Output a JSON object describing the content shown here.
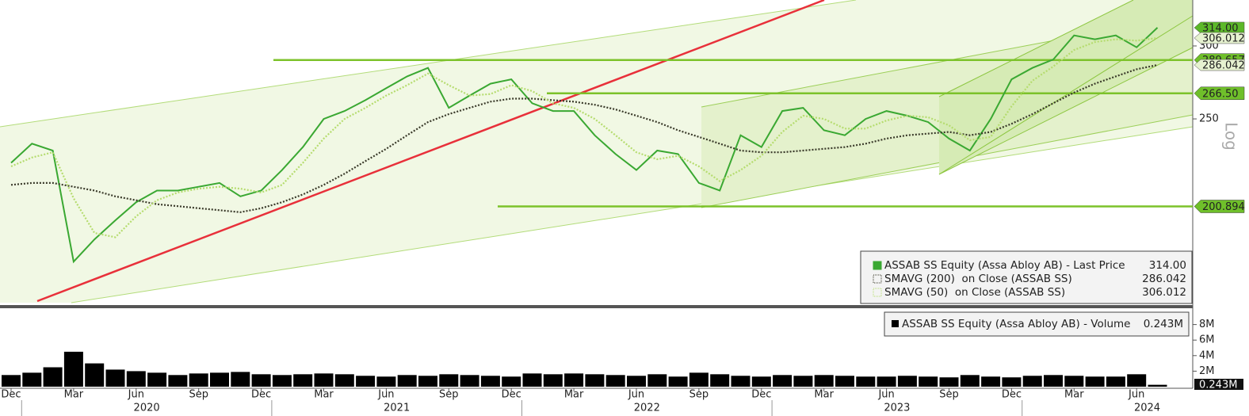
{
  "chart_data": {
    "type": "line",
    "yscale": "log",
    "scale_label": "Log",
    "x": [
      "2019-12",
      "2020-01",
      "2020-02",
      "2020-03",
      "2020-04",
      "2020-05",
      "2020-06",
      "2020-07",
      "2020-08",
      "2020-09",
      "2020-10",
      "2020-11",
      "2020-12",
      "2021-01",
      "2021-02",
      "2021-03",
      "2021-04",
      "2021-05",
      "2021-06",
      "2021-07",
      "2021-08",
      "2021-09",
      "2021-10",
      "2021-11",
      "2021-12",
      "2022-01",
      "2022-02",
      "2022-03",
      "2022-04",
      "2022-05",
      "2022-06",
      "2022-07",
      "2022-08",
      "2022-09",
      "2022-10",
      "2022-11",
      "2022-12",
      "2023-01",
      "2023-02",
      "2023-03",
      "2023-04",
      "2023-05",
      "2023-06",
      "2023-07",
      "2023-08",
      "2023-09",
      "2023-10",
      "2023-11",
      "2023-12",
      "2024-01",
      "2024-02",
      "2024-03",
      "2024-04",
      "2024-05",
      "2024-06",
      "2024-07"
    ],
    "series": [
      {
        "name": "ASSAB SS Equity (Assa Abloy AB) - Last Price",
        "color": "#3aa832",
        "last_value_label": "314.00",
        "values": [
          224,
          235,
          231,
          175,
          185,
          194,
          203,
          209,
          209,
          211,
          213,
          206,
          209,
          220,
          233,
          250,
          255,
          262,
          270,
          278,
          284,
          257,
          265,
          273,
          276,
          260,
          255,
          255,
          240,
          229,
          220,
          231,
          229,
          213,
          209,
          240,
          233,
          255,
          257,
          243,
          240,
          250,
          255,
          252,
          248,
          238,
          231,
          250,
          276,
          284,
          290,
          308,
          305,
          308,
          299,
          314
        ]
      },
      {
        "name": "SMAVG (200)  on Close (ASSAB SS)",
        "color": "#3a3a2a",
        "values": [
          212,
          213,
          213,
          211,
          209,
          206,
          204,
          202,
          201,
          200,
          199,
          198,
          200,
          203,
          207,
          212,
          218,
          225,
          232,
          240,
          248,
          253,
          257,
          261,
          263,
          263,
          262,
          261,
          259,
          256,
          252,
          248,
          243,
          239,
          235,
          231,
          230,
          230,
          231,
          232,
          233,
          235,
          238,
          240,
          241,
          242,
          240,
          242,
          247,
          253,
          260,
          267,
          273,
          278,
          283,
          286.042
        ]
      },
      {
        "name": "SMAVG (50)  on Close (ASSAB SS)",
        "color": "#b5dc6e",
        "values": [
          222,
          227,
          230,
          205,
          188,
          186,
          196,
          204,
          208,
          210,
          211,
          210,
          208,
          212,
          224,
          238,
          250,
          257,
          265,
          272,
          280,
          272,
          265,
          266,
          272,
          268,
          260,
          257,
          250,
          240,
          230,
          226,
          228,
          222,
          214,
          220,
          228,
          242,
          252,
          250,
          244,
          244,
          249,
          252,
          251,
          246,
          237,
          239,
          258,
          275,
          285,
          297,
          303,
          305,
          304,
          306.012
        ]
      }
    ],
    "ylim": [
      157,
      336.5
    ],
    "yticks": [
      250,
      300
    ],
    "hlines": [
      289.657,
      {
        "value": 266.5,
        "label": "266.50"
      },
      200.894
    ],
    "xticks": [
      {
        "value": "2019-12",
        "label": "Dec"
      },
      {
        "value": "2020-03",
        "label": "Mar"
      },
      {
        "value": "2020-06",
        "label": "Jun"
      },
      {
        "value": "2020-09",
        "label": "Sep"
      },
      {
        "value": "2020-12",
        "label": "Dec"
      },
      {
        "value": "2021-03",
        "label": "Mar"
      },
      {
        "value": "2021-06",
        "label": "Jun"
      },
      {
        "value": "2021-09",
        "label": "Sep"
      },
      {
        "value": "2021-12",
        "label": "Dec"
      },
      {
        "value": "2022-03",
        "label": "Mar"
      },
      {
        "value": "2022-06",
        "label": "Jun"
      },
      {
        "value": "2022-09",
        "label": "Sep"
      },
      {
        "value": "2022-12",
        "label": "Dec"
      },
      {
        "value": "2023-03",
        "label": "Mar"
      },
      {
        "value": "2023-06",
        "label": "Jun"
      },
      {
        "value": "2023-09",
        "label": "Sep"
      },
      {
        "value": "2023-12",
        "label": "Dec"
      },
      {
        "value": "2024-03",
        "label": "Mar"
      },
      {
        "value": "2024-06",
        "label": "Jun"
      }
    ],
    "years": [
      "2020",
      "2021",
      "2022",
      "2023",
      "2024"
    ],
    "volume": {
      "type": "bar",
      "name": "ASSAB SS Equity (Assa Abloy AB) - Volume",
      "color": "#000000",
      "last_value_label": "0.243M",
      "values": [
        1.5,
        1.8,
        2.5,
        4.5,
        3,
        2.2,
        2,
        1.8,
        1.5,
        1.7,
        1.8,
        1.9,
        1.6,
        1.5,
        1.6,
        1.7,
        1.6,
        1.4,
        1.3,
        1.5,
        1.4,
        1.6,
        1.5,
        1.4,
        1.3,
        1.7,
        1.6,
        1.7,
        1.6,
        1.5,
        1.4,
        1.6,
        1.3,
        1.8,
        1.6,
        1.4,
        1.3,
        1.5,
        1.4,
        1.5,
        1.4,
        1.3,
        1.3,
        1.4,
        1.3,
        1.2,
        1.5,
        1.3,
        1.2,
        1.4,
        1.5,
        1.4,
        1.3,
        1.3,
        1.6,
        0.243
      ],
      "ylim": [
        0,
        10
      ],
      "yticks": [
        {
          "value": 2,
          "label": "2M"
        },
        {
          "value": 4,
          "label": "4M"
        },
        {
          "value": 6,
          "label": "6M"
        },
        {
          "value": 8,
          "label": "8M"
        }
      ]
    }
  }
}
